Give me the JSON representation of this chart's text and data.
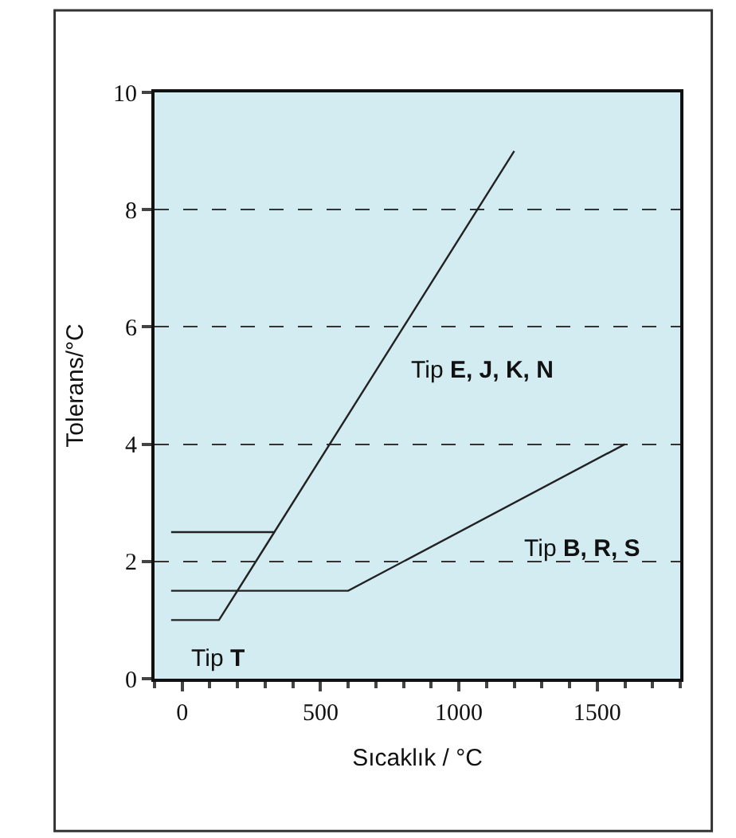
{
  "chart_data": {
    "type": "line",
    "xlabel": "Sıcaklık / °C",
    "ylabel": "Tolerans/°C",
    "series": [
      {
        "name": "Tip E, J, K, N",
        "color": "#222222",
        "x": [
          -40,
          333,
          1200
        ],
        "values": [
          2.5,
          2.5,
          9
        ]
      },
      {
        "name": "Tip B, R, S",
        "color": "#222222",
        "x": [
          -40,
          600,
          1600
        ],
        "values": [
          1.5,
          1.5,
          4
        ]
      },
      {
        "name": "Tip T",
        "color": "#222222",
        "x": [
          -40,
          133,
          333
        ],
        "values": [
          1,
          1,
          2.5
        ]
      }
    ],
    "xlim": [
      -100,
      1800
    ],
    "xticks": [
      0,
      500,
      1000,
      1500
    ],
    "ylim": [
      0,
      10
    ],
    "yticks": [
      0,
      2,
      4,
      6,
      8,
      10
    ],
    "grid": "y",
    "line_style": "solid",
    "marker": "none",
    "legend": false
  }
}
